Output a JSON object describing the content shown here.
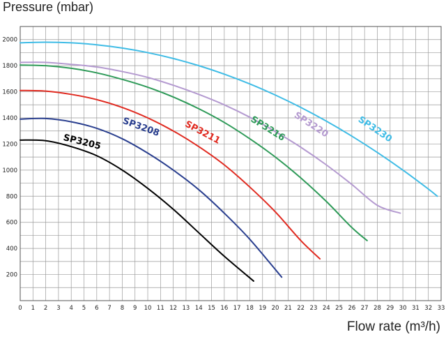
{
  "chart_data": {
    "type": "line",
    "title": "",
    "ylabel": "Pressure (mbar)",
    "xlabel": "Flow rate (m³/h)",
    "xlim": [
      0,
      33
    ],
    "ylim": [
      0,
      2100
    ],
    "x_ticks": [
      0,
      1,
      2,
      3,
      4,
      5,
      6,
      7,
      8,
      9,
      10,
      11,
      12,
      13,
      14,
      15,
      16,
      17,
      18,
      19,
      20,
      21,
      22,
      23,
      24,
      25,
      26,
      27,
      28,
      29,
      30,
      31,
      32,
      33
    ],
    "y_ticks": [
      200,
      400,
      600,
      800,
      1000,
      1200,
      1400,
      1600,
      1800,
      2000
    ],
    "grid": true,
    "series": [
      {
        "name": "SP3205",
        "color": "#000000",
        "x": [
          0,
          2,
          4,
          6,
          8,
          10,
          12,
          14,
          16,
          18.3
        ],
        "y": [
          1230,
          1225,
          1180,
          1110,
          1000,
          860,
          700,
          520,
          340,
          150
        ]
      },
      {
        "name": "SP3208",
        "color": "#2a3f8f",
        "x": [
          0,
          2,
          4,
          6,
          8,
          10,
          12,
          14,
          16,
          18,
          20.5
        ],
        "y": [
          1390,
          1395,
          1370,
          1320,
          1240,
          1130,
          1000,
          850,
          670,
          470,
          180
        ]
      },
      {
        "name": "SP3211",
        "color": "#e02a20",
        "x": [
          0,
          2,
          4,
          6,
          8,
          10,
          12,
          14,
          16,
          18,
          20,
          22,
          23.5
        ],
        "y": [
          1610,
          1605,
          1580,
          1540,
          1480,
          1400,
          1300,
          1180,
          1040,
          870,
          680,
          460,
          320
        ]
      },
      {
        "name": "SP3216",
        "color": "#2e9a58",
        "x": [
          0,
          2,
          4,
          6,
          8,
          10,
          12,
          14,
          16,
          18,
          20,
          22,
          24,
          26,
          27.2
        ],
        "y": [
          1805,
          1800,
          1780,
          1745,
          1695,
          1635,
          1560,
          1470,
          1365,
          1240,
          1100,
          940,
          760,
          560,
          460
        ]
      },
      {
        "name": "SP3220",
        "color": "#b49ad0",
        "x": [
          0,
          2,
          4,
          6,
          8,
          10,
          12,
          14,
          16,
          18,
          20,
          22,
          24,
          26,
          28,
          29.8
        ],
        "y": [
          1825,
          1825,
          1810,
          1790,
          1755,
          1710,
          1650,
          1580,
          1500,
          1405,
          1295,
          1175,
          1040,
          890,
          730,
          670
        ]
      },
      {
        "name": "SP3230",
        "color": "#3fbce6",
        "x": [
          0,
          2,
          4,
          6,
          8,
          10,
          12,
          14,
          16,
          18,
          20,
          22,
          24,
          26,
          28,
          30,
          32,
          32.7
        ],
        "y": [
          1975,
          1980,
          1975,
          1960,
          1935,
          1900,
          1855,
          1800,
          1735,
          1660,
          1575,
          1480,
          1375,
          1260,
          1135,
          1000,
          855,
          800
        ]
      }
    ],
    "labels": [
      {
        "series": "SP3205",
        "text": "SP3205",
        "x": 4.8,
        "y": 1195,
        "angle": 14
      },
      {
        "series": "SP3208",
        "text": "SP3208",
        "x": 9.4,
        "y": 1310,
        "angle": 20
      },
      {
        "series": "SP3211",
        "text": "SP3211",
        "x": 14.2,
        "y": 1270,
        "angle": 28
      },
      {
        "series": "SP3216",
        "text": "SP3216",
        "x": 19.3,
        "y": 1300,
        "angle": 32
      },
      {
        "series": "SP3220",
        "text": "SP3220",
        "x": 22.7,
        "y": 1330,
        "angle": 33
      },
      {
        "series": "SP3230",
        "text": "SP3230",
        "x": 27.7,
        "y": 1295,
        "angle": 34
      }
    ]
  }
}
